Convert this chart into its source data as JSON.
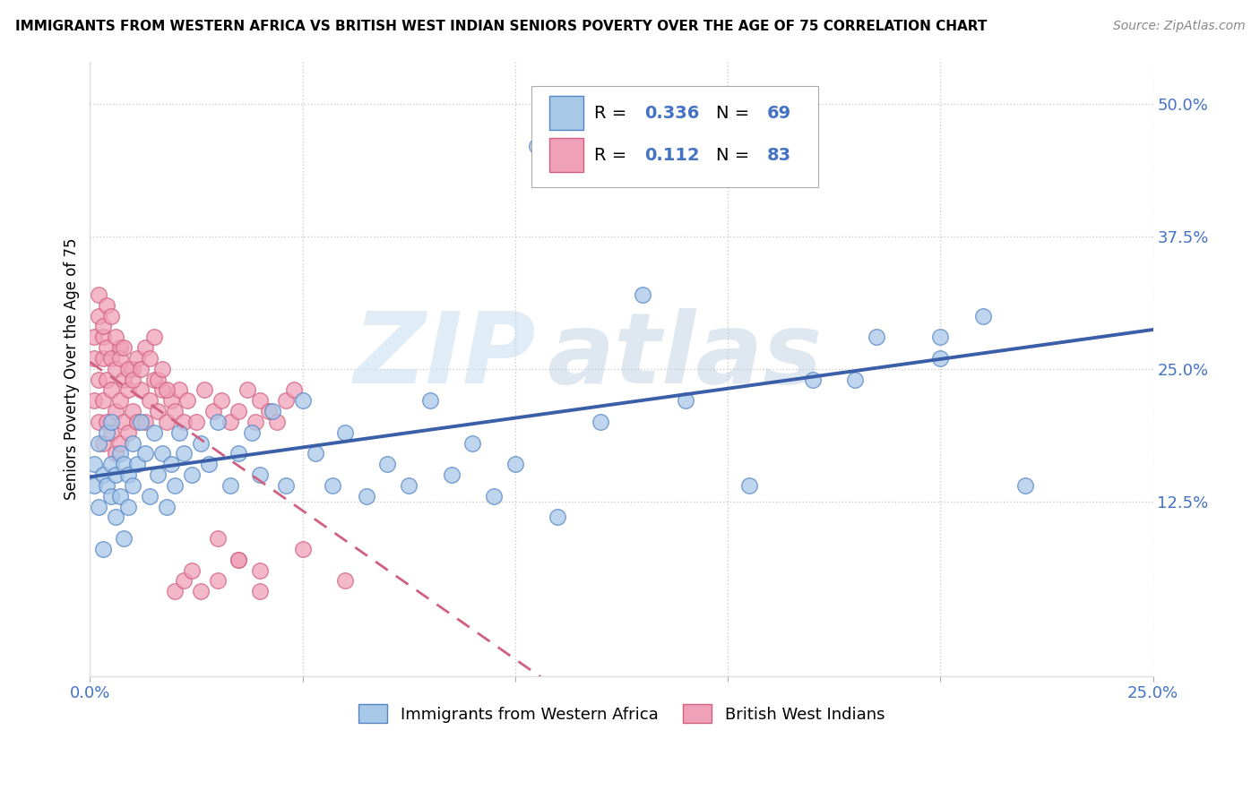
{
  "title": "IMMIGRANTS FROM WESTERN AFRICA VS BRITISH WEST INDIAN SENIORS POVERTY OVER THE AGE OF 75 CORRELATION CHART",
  "source": "Source: ZipAtlas.com",
  "ylabel": "Seniors Poverty Over the Age of 75",
  "xlim": [
    0.0,
    0.25
  ],
  "ylim": [
    -0.04,
    0.54
  ],
  "yticks_right": [
    0.125,
    0.25,
    0.375,
    0.5
  ],
  "ytick_labels_right": [
    "12.5%",
    "25.0%",
    "37.5%",
    "50.0%"
  ],
  "R_blue": 0.336,
  "N_blue": 69,
  "R_pink": 0.112,
  "N_pink": 83,
  "blue_color": "#a8c8e8",
  "blue_edge": "#5585c5",
  "pink_color": "#f0a0b8",
  "pink_edge": "#d06080",
  "line_blue_color": "#3a5fa8",
  "line_pink_color": "#d06080",
  "legend_label_blue": "Immigrants from Western Africa",
  "legend_label_pink": "British West Indians",
  "blue_x": [
    0.001,
    0.001,
    0.002,
    0.002,
    0.003,
    0.003,
    0.004,
    0.004,
    0.005,
    0.005,
    0.005,
    0.006,
    0.006,
    0.007,
    0.007,
    0.008,
    0.008,
    0.009,
    0.009,
    0.01,
    0.01,
    0.011,
    0.012,
    0.013,
    0.014,
    0.015,
    0.016,
    0.017,
    0.018,
    0.019,
    0.02,
    0.021,
    0.022,
    0.024,
    0.026,
    0.028,
    0.03,
    0.033,
    0.035,
    0.038,
    0.04,
    0.043,
    0.046,
    0.05,
    0.053,
    0.057,
    0.06,
    0.065,
    0.07,
    0.075,
    0.08,
    0.085,
    0.09,
    0.095,
    0.1,
    0.11,
    0.12,
    0.13,
    0.14,
    0.155,
    0.17,
    0.185,
    0.2,
    0.21,
    0.22,
    0.105,
    0.107,
    0.18,
    0.2
  ],
  "blue_y": [
    0.14,
    0.16,
    0.12,
    0.18,
    0.15,
    0.08,
    0.14,
    0.19,
    0.16,
    0.13,
    0.2,
    0.15,
    0.11,
    0.17,
    0.13,
    0.09,
    0.16,
    0.12,
    0.15,
    0.14,
    0.18,
    0.16,
    0.2,
    0.17,
    0.13,
    0.19,
    0.15,
    0.17,
    0.12,
    0.16,
    0.14,
    0.19,
    0.17,
    0.15,
    0.18,
    0.16,
    0.2,
    0.14,
    0.17,
    0.19,
    0.15,
    0.21,
    0.14,
    0.22,
    0.17,
    0.14,
    0.19,
    0.13,
    0.16,
    0.14,
    0.22,
    0.15,
    0.18,
    0.13,
    0.16,
    0.11,
    0.2,
    0.32,
    0.22,
    0.14,
    0.24,
    0.28,
    0.26,
    0.3,
    0.14,
    0.46,
    0.44,
    0.24,
    0.28
  ],
  "pink_x": [
    0.001,
    0.001,
    0.001,
    0.002,
    0.002,
    0.002,
    0.003,
    0.003,
    0.003,
    0.003,
    0.004,
    0.004,
    0.004,
    0.005,
    0.005,
    0.005,
    0.006,
    0.006,
    0.006,
    0.007,
    0.007,
    0.007,
    0.008,
    0.008,
    0.009,
    0.009,
    0.01,
    0.01,
    0.011,
    0.012,
    0.013,
    0.014,
    0.015,
    0.016,
    0.017,
    0.018,
    0.019,
    0.02,
    0.021,
    0.022,
    0.023,
    0.025,
    0.027,
    0.029,
    0.031,
    0.033,
    0.035,
    0.037,
    0.039,
    0.002,
    0.003,
    0.004,
    0.005,
    0.006,
    0.007,
    0.008,
    0.009,
    0.01,
    0.011,
    0.012,
    0.013,
    0.014,
    0.015,
    0.016,
    0.017,
    0.018,
    0.04,
    0.042,
    0.044,
    0.046,
    0.048,
    0.02,
    0.022,
    0.024,
    0.026,
    0.03,
    0.035,
    0.04,
    0.03,
    0.035,
    0.04,
    0.05,
    0.06
  ],
  "pink_y": [
    0.22,
    0.26,
    0.28,
    0.2,
    0.24,
    0.3,
    0.18,
    0.22,
    0.26,
    0.28,
    0.2,
    0.24,
    0.27,
    0.19,
    0.23,
    0.26,
    0.17,
    0.21,
    0.25,
    0.18,
    0.22,
    0.27,
    0.2,
    0.24,
    0.19,
    0.23,
    0.21,
    0.25,
    0.2,
    0.23,
    0.2,
    0.22,
    0.24,
    0.21,
    0.23,
    0.2,
    0.22,
    0.21,
    0.23,
    0.2,
    0.22,
    0.2,
    0.23,
    0.21,
    0.22,
    0.2,
    0.21,
    0.23,
    0.2,
    0.32,
    0.29,
    0.31,
    0.3,
    0.28,
    0.26,
    0.27,
    0.25,
    0.24,
    0.26,
    0.25,
    0.27,
    0.26,
    0.28,
    0.24,
    0.25,
    0.23,
    0.22,
    0.21,
    0.2,
    0.22,
    0.23,
    0.04,
    0.05,
    0.06,
    0.04,
    0.05,
    0.07,
    0.06,
    0.09,
    0.07,
    0.04,
    0.08,
    0.05
  ]
}
